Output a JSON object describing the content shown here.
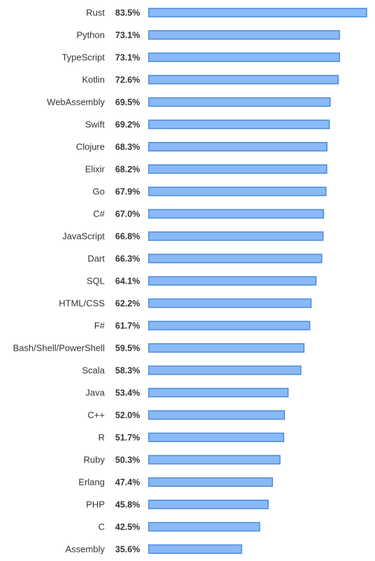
{
  "chart_data": {
    "type": "bar",
    "orientation": "horizontal",
    "title": "",
    "xlabel": "",
    "ylabel": "",
    "xlim": [
      0,
      83.5
    ],
    "grid": false,
    "legend": "none",
    "value_suffix": "%",
    "colors": {
      "bar_fill": "#8ab9f8",
      "bar_stroke": "#4a8ad8",
      "text": "#333333"
    },
    "categories": [
      "Rust",
      "Python",
      "TypeScript",
      "Kotlin",
      "WebAssembly",
      "Swift",
      "Clojure",
      "Elixir",
      "Go",
      "C#",
      "JavaScript",
      "Dart",
      "SQL",
      "HTML/CSS",
      "F#",
      "Bash/Shell/PowerShell",
      "Scala",
      "Java",
      "C++",
      "R",
      "Ruby",
      "Erlang",
      "PHP",
      "C",
      "Assembly"
    ],
    "values": [
      83.5,
      73.1,
      73.1,
      72.6,
      69.5,
      69.2,
      68.3,
      68.2,
      67.9,
      67.0,
      66.8,
      66.3,
      64.1,
      62.2,
      61.7,
      59.5,
      58.3,
      53.4,
      52.0,
      51.7,
      50.3,
      47.4,
      45.8,
      42.5,
      35.6
    ],
    "value_labels": [
      "83.5%",
      "73.1%",
      "73.1%",
      "72.6%",
      "69.5%",
      "69.2%",
      "68.3%",
      "68.2%",
      "67.9%",
      "67.0%",
      "66.8%",
      "66.3%",
      "64.1%",
      "62.2%",
      "61.7%",
      "59.5%",
      "58.3%",
      "53.4%",
      "52.0%",
      "51.7%",
      "50.3%",
      "47.4%",
      "45.8%",
      "42.5%",
      "35.6%"
    ]
  }
}
